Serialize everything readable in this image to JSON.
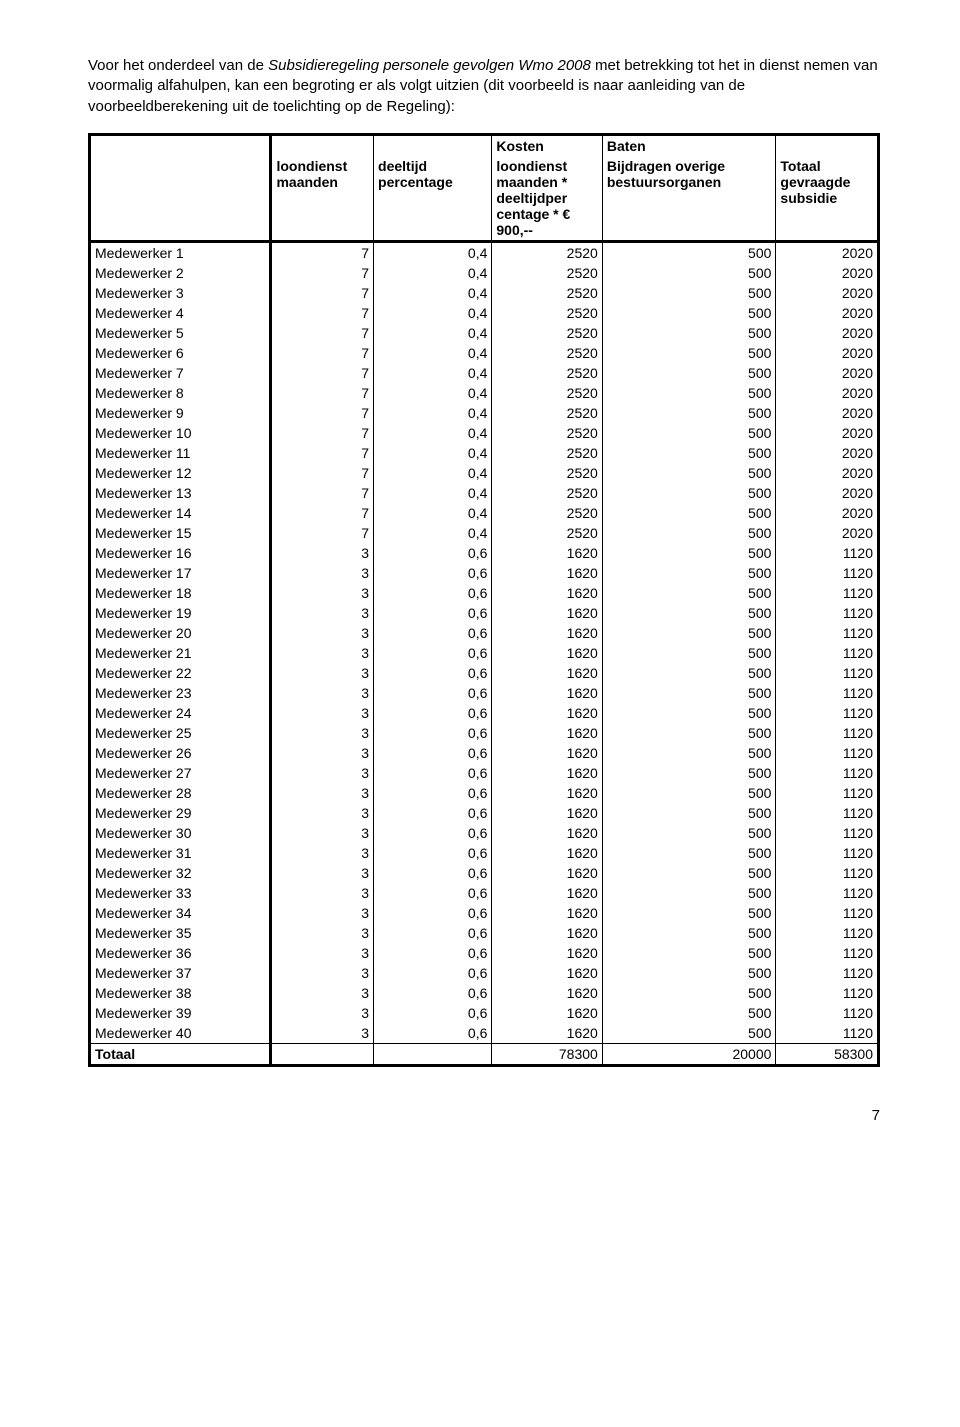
{
  "intro": {
    "line1_pre": "Voor het onderdeel van de ",
    "line1_italic": "Subsidieregeling personele gevolgen Wmo 2008",
    "line1_post": " met betrekking tot het",
    "line2": "in dienst nemen van voormalig alfahulpen, kan een begroting er als volgt uitzien (dit voorbeeld is",
    "line3": "naar aanleiding van de voorbeeldberekening uit de toelichting op de Regeling):"
  },
  "table": {
    "header_row1": {
      "kosten": "Kosten",
      "baten": "Baten"
    },
    "header_cols": {
      "c1": "",
      "c2": "loondienst maanden",
      "c3": "deeltijd percentage",
      "c4": "loondienst maanden * deeltijdper centage * € 900,--",
      "c5": "Bijdragen overige bestuursorganen",
      "c6": "Totaal gevraagde subsidie"
    },
    "rows": [
      {
        "label": "Medewerker 1",
        "c2": "7",
        "c3": "0,4",
        "c4": "2520",
        "c5": "500",
        "c6": "2020"
      },
      {
        "label": "Medewerker 2",
        "c2": "7",
        "c3": "0,4",
        "c4": "2520",
        "c5": "500",
        "c6": "2020"
      },
      {
        "label": "Medewerker 3",
        "c2": "7",
        "c3": "0,4",
        "c4": "2520",
        "c5": "500",
        "c6": "2020"
      },
      {
        "label": "Medewerker 4",
        "c2": "7",
        "c3": "0,4",
        "c4": "2520",
        "c5": "500",
        "c6": "2020"
      },
      {
        "label": "Medewerker 5",
        "c2": "7",
        "c3": "0,4",
        "c4": "2520",
        "c5": "500",
        "c6": "2020"
      },
      {
        "label": "Medewerker 6",
        "c2": "7",
        "c3": "0,4",
        "c4": "2520",
        "c5": "500",
        "c6": "2020"
      },
      {
        "label": "Medewerker 7",
        "c2": "7",
        "c3": "0,4",
        "c4": "2520",
        "c5": "500",
        "c6": "2020"
      },
      {
        "label": "Medewerker 8",
        "c2": "7",
        "c3": "0,4",
        "c4": "2520",
        "c5": "500",
        "c6": "2020"
      },
      {
        "label": "Medewerker 9",
        "c2": "7",
        "c3": "0,4",
        "c4": "2520",
        "c5": "500",
        "c6": "2020"
      },
      {
        "label": "Medewerker 10",
        "c2": "7",
        "c3": "0,4",
        "c4": "2520",
        "c5": "500",
        "c6": "2020"
      },
      {
        "label": "Medewerker 11",
        "c2": "7",
        "c3": "0,4",
        "c4": "2520",
        "c5": "500",
        "c6": "2020"
      },
      {
        "label": "Medewerker 12",
        "c2": "7",
        "c3": "0,4",
        "c4": "2520",
        "c5": "500",
        "c6": "2020"
      },
      {
        "label": "Medewerker 13",
        "c2": "7",
        "c3": "0,4",
        "c4": "2520",
        "c5": "500",
        "c6": "2020"
      },
      {
        "label": "Medewerker 14",
        "c2": "7",
        "c3": "0,4",
        "c4": "2520",
        "c5": "500",
        "c6": "2020"
      },
      {
        "label": "Medewerker 15",
        "c2": "7",
        "c3": "0,4",
        "c4": "2520",
        "c5": "500",
        "c6": "2020"
      },
      {
        "label": "Medewerker 16",
        "c2": "3",
        "c3": "0,6",
        "c4": "1620",
        "c5": "500",
        "c6": "1120"
      },
      {
        "label": "Medewerker 17",
        "c2": "3",
        "c3": "0,6",
        "c4": "1620",
        "c5": "500",
        "c6": "1120"
      },
      {
        "label": "Medewerker 18",
        "c2": "3",
        "c3": "0,6",
        "c4": "1620",
        "c5": "500",
        "c6": "1120"
      },
      {
        "label": "Medewerker 19",
        "c2": "3",
        "c3": "0,6",
        "c4": "1620",
        "c5": "500",
        "c6": "1120"
      },
      {
        "label": "Medewerker 20",
        "c2": "3",
        "c3": "0,6",
        "c4": "1620",
        "c5": "500",
        "c6": "1120"
      },
      {
        "label": "Medewerker 21",
        "c2": "3",
        "c3": "0,6",
        "c4": "1620",
        "c5": "500",
        "c6": "1120"
      },
      {
        "label": "Medewerker 22",
        "c2": "3",
        "c3": "0,6",
        "c4": "1620",
        "c5": "500",
        "c6": "1120"
      },
      {
        "label": "Medewerker 23",
        "c2": "3",
        "c3": "0,6",
        "c4": "1620",
        "c5": "500",
        "c6": "1120"
      },
      {
        "label": "Medewerker 24",
        "c2": "3",
        "c3": "0,6",
        "c4": "1620",
        "c5": "500",
        "c6": "1120"
      },
      {
        "label": "Medewerker 25",
        "c2": "3",
        "c3": "0,6",
        "c4": "1620",
        "c5": "500",
        "c6": "1120"
      },
      {
        "label": "Medewerker 26",
        "c2": "3",
        "c3": "0,6",
        "c4": "1620",
        "c5": "500",
        "c6": "1120"
      },
      {
        "label": "Medewerker 27",
        "c2": "3",
        "c3": "0,6",
        "c4": "1620",
        "c5": "500",
        "c6": "1120"
      },
      {
        "label": "Medewerker 28",
        "c2": "3",
        "c3": "0,6",
        "c4": "1620",
        "c5": "500",
        "c6": "1120"
      },
      {
        "label": "Medewerker 29",
        "c2": "3",
        "c3": "0,6",
        "c4": "1620",
        "c5": "500",
        "c6": "1120"
      },
      {
        "label": "Medewerker 30",
        "c2": "3",
        "c3": "0,6",
        "c4": "1620",
        "c5": "500",
        "c6": "1120"
      },
      {
        "label": "Medewerker 31",
        "c2": "3",
        "c3": "0,6",
        "c4": "1620",
        "c5": "500",
        "c6": "1120"
      },
      {
        "label": "Medewerker 32",
        "c2": "3",
        "c3": "0,6",
        "c4": "1620",
        "c5": "500",
        "c6": "1120"
      },
      {
        "label": "Medewerker 33",
        "c2": "3",
        "c3": "0,6",
        "c4": "1620",
        "c5": "500",
        "c6": "1120"
      },
      {
        "label": "Medewerker 34",
        "c2": "3",
        "c3": "0,6",
        "c4": "1620",
        "c5": "500",
        "c6": "1120"
      },
      {
        "label": "Medewerker 35",
        "c2": "3",
        "c3": "0,6",
        "c4": "1620",
        "c5": "500",
        "c6": "1120"
      },
      {
        "label": "Medewerker 36",
        "c2": "3",
        "c3": "0,6",
        "c4": "1620",
        "c5": "500",
        "c6": "1120"
      },
      {
        "label": "Medewerker 37",
        "c2": "3",
        "c3": "0,6",
        "c4": "1620",
        "c5": "500",
        "c6": "1120"
      },
      {
        "label": "Medewerker 38",
        "c2": "3",
        "c3": "0,6",
        "c4": "1620",
        "c5": "500",
        "c6": "1120"
      },
      {
        "label": "Medewerker 39",
        "c2": "3",
        "c3": "0,6",
        "c4": "1620",
        "c5": "500",
        "c6": "1120"
      },
      {
        "label": "Medewerker 40",
        "c2": "3",
        "c3": "0,6",
        "c4": "1620",
        "c5": "500",
        "c6": "1120"
      }
    ],
    "total": {
      "label": "Totaal",
      "c2": "",
      "c3": "",
      "c4": "78300",
      "c5": "20000",
      "c6": "58300"
    }
  },
  "page_number": "7"
}
